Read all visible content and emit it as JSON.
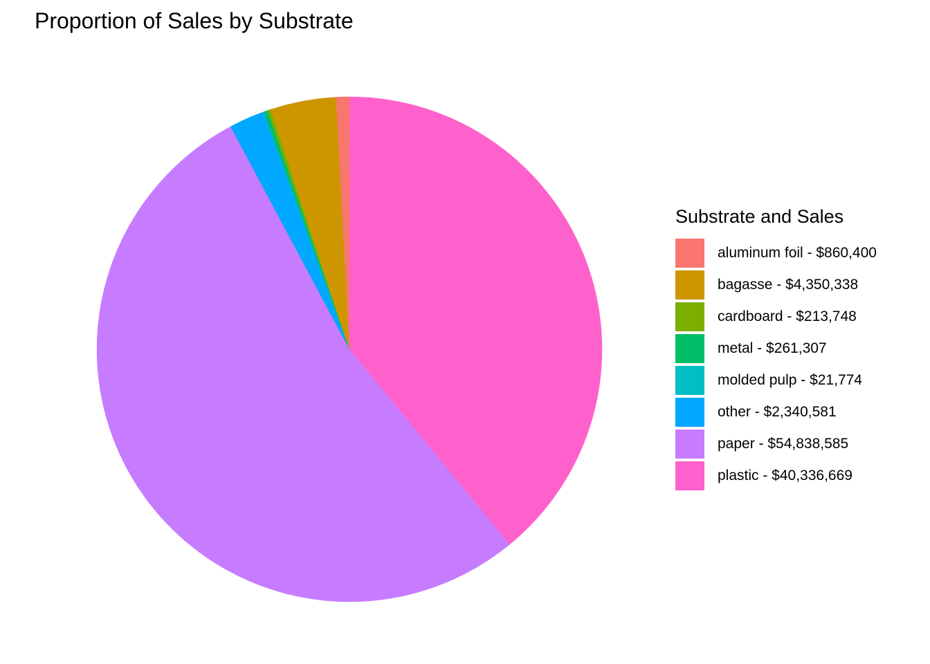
{
  "chart_data": {
    "type": "pie",
    "title": "Proportion of Sales by Substrate",
    "legend_title": "Substrate and Sales",
    "legend_position": "right",
    "start_angle": "12 o'clock",
    "direction": "clockwise",
    "categories": [
      "aluminum foil",
      "bagasse",
      "cardboard",
      "metal",
      "molded pulp",
      "other",
      "paper",
      "plastic"
    ],
    "values": [
      860400,
      4350338,
      213748,
      261307,
      21774,
      2340581,
      54838585,
      40336669
    ],
    "legend_labels": [
      "aluminum foil - $860,400",
      "bagasse - $4,350,338",
      "cardboard - $213,748",
      "metal - $261,307",
      "molded pulp - $21,774",
      "other - $2,340,581",
      "paper - $54,838,585",
      "plastic - $40,336,669"
    ],
    "colors": [
      "#F8766D",
      "#CD9600",
      "#7CAE00",
      "#00BE67",
      "#00BFC4",
      "#00A9FF",
      "#C77CFF",
      "#FF61CC"
    ],
    "slice_draw_order": [
      7,
      6,
      5,
      4,
      3,
      2,
      1,
      0
    ]
  }
}
